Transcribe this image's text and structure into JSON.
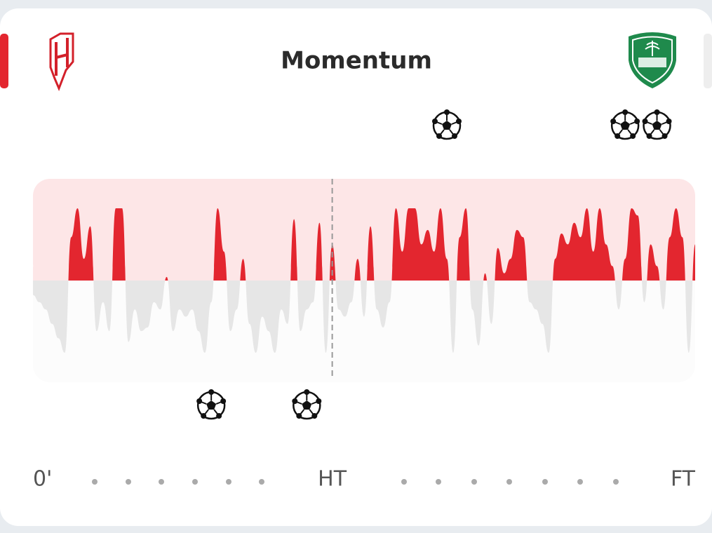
{
  "chart_data": {
    "type": "momentum",
    "title": "Momentum",
    "x": [
      0,
      1,
      2,
      3,
      4,
      5,
      6,
      7,
      8,
      9,
      10,
      11,
      12,
      13,
      14,
      15,
      16,
      17,
      18,
      19,
      20,
      21,
      22,
      23,
      24,
      25,
      26,
      27,
      28,
      29,
      30,
      31,
      32,
      33,
      34,
      35,
      36,
      37,
      38,
      39,
      40,
      41,
      42,
      43,
      44,
      45,
      46,
      47,
      48,
      49,
      50,
      51,
      52,
      53,
      54,
      55,
      56,
      57,
      58,
      59,
      60,
      61,
      62,
      63,
      64,
      65,
      66,
      67,
      68,
      69,
      70,
      71,
      72,
      73,
      74,
      75,
      76,
      77,
      78,
      79,
      80,
      81,
      82,
      83,
      84,
      85,
      86,
      87,
      88,
      89,
      90,
      91,
      92,
      93,
      94,
      95,
      96,
      97,
      98,
      99,
      100,
      101,
      102,
      103,
      104
    ],
    "values": [
      -20,
      -30,
      -40,
      -60,
      -80,
      -100,
      60,
      100,
      30,
      75,
      -70,
      -30,
      -70,
      100,
      100,
      -85,
      -40,
      -70,
      -65,
      -30,
      -40,
      5,
      -70,
      -40,
      -50,
      -40,
      -70,
      -100,
      -30,
      100,
      40,
      -70,
      -40,
      30,
      -60,
      -100,
      -50,
      -70,
      -100,
      -40,
      -60,
      85,
      -70,
      -40,
      -30,
      80,
      -100,
      50,
      -40,
      -50,
      -30,
      30,
      -50,
      75,
      -40,
      -65,
      -30,
      100,
      40,
      100,
      100,
      50,
      70,
      40,
      100,
      30,
      -100,
      60,
      100,
      -40,
      -90,
      10,
      -60,
      45,
      10,
      30,
      70,
      60,
      -30,
      -40,
      -60,
      -100,
      30,
      65,
      50,
      80,
      60,
      100,
      40,
      100,
      50,
      20,
      -40,
      30,
      100,
      90,
      -30,
      50,
      20,
      -40,
      60,
      100,
      60,
      -100,
      50
    ],
    "xlim": [
      0,
      104
    ],
    "ylim": [
      -100,
      100
    ],
    "xticks": [
      {
        "value": 0,
        "label": "0'"
      },
      {
        "value": 47,
        "label": "HT"
      },
      {
        "value": 104,
        "label": "FT"
      }
    ],
    "positive_color": "#e3262f",
    "negative_color": "#e6e6e6",
    "goals_top": [
      65,
      93,
      98
    ],
    "goals_bottom": [
      28,
      43
    ]
  }
}
